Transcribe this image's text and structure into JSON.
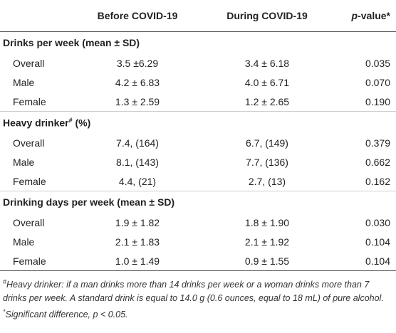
{
  "table": {
    "header": {
      "before": "Before COVID-19",
      "during": "During COVID-19",
      "p": "p",
      "pvalue": "-value*"
    },
    "sections": [
      {
        "title": "Drinks per week (mean ± SD)",
        "rows": [
          [
            "Overall",
            "3.5 ±6.29",
            "3.4 ± 6.18",
            "0.035"
          ],
          [
            "Male",
            "4.2 ± 6.83",
            "4.0 ± 6.71",
            "0.070"
          ],
          [
            "Female",
            "1.3 ± 2.59",
            "1.2 ± 2.65",
            "0.190"
          ]
        ]
      },
      {
        "title": "Heavy drinker",
        "title_sup": "#",
        "title_suffix": " (%)",
        "rows": [
          [
            "Overall",
            "7.4, (164)",
            "6.7, (149)",
            "0.379"
          ],
          [
            "Male",
            "8.1, (143)",
            "7.7, (136)",
            "0.662"
          ],
          [
            "Female",
            "4.4, (21)",
            "2.7, (13)",
            "0.162"
          ]
        ]
      },
      {
        "title": "Drinking days per week (mean ± SD)",
        "rows": [
          [
            "Overall",
            "1.9 ± 1.82",
            "1.8 ± 1.90",
            "0.030"
          ],
          [
            "Male",
            "2.1 ± 1.83",
            "2.1 ± 1.92",
            "0.104"
          ],
          [
            "Female",
            "1.0 ± 1.49",
            "0.9 ± 1.55",
            "0.104"
          ]
        ]
      }
    ]
  },
  "footnotes": [
    {
      "mark": "#",
      "text": "Heavy drinker: if a man drinks more than 14 drinks per week or a woman drinks more than 7 drinks per week. A standard drink is equal to 14.0 g (0.6 ounces, equal to 18 mL) of pure alcohol."
    },
    {
      "mark": "*",
      "text": "Significant difference, p < 0.05."
    }
  ]
}
